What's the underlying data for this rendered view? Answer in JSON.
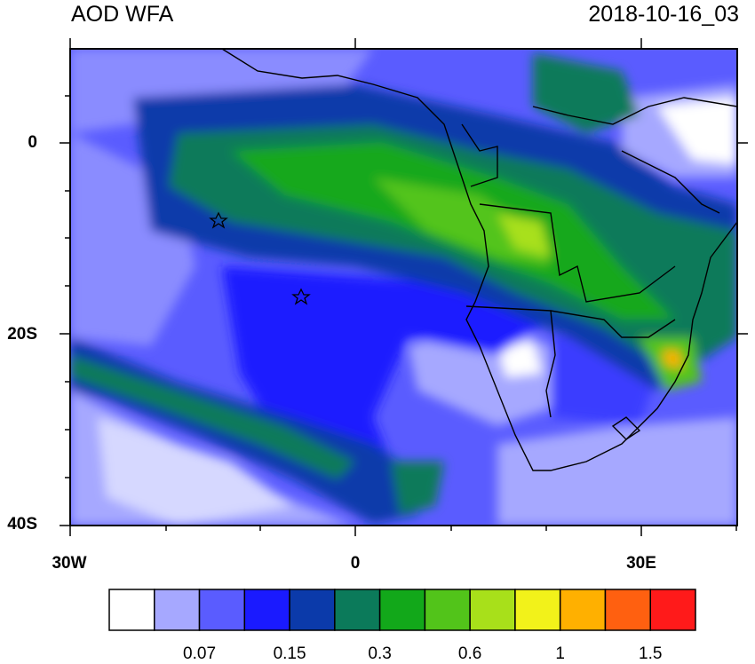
{
  "title_left": "AOD WFA",
  "title_right": "2018-10-16_03",
  "y_axis": {
    "ticks": [
      "0",
      "20S",
      "40S"
    ]
  },
  "x_axis": {
    "ticks": [
      "30W",
      "0",
      "30E"
    ]
  },
  "colorbar": {
    "labels": [
      "0.07",
      "0.15",
      "0.3",
      "0.6",
      "1",
      "1.5"
    ],
    "colors": [
      "#ffffff",
      "#a6a8ff",
      "#5a5cff",
      "#1a1aff",
      "#0b3aaa",
      "#0b7a5a",
      "#12a81a",
      "#52c41a",
      "#a8e01a",
      "#f2f21a",
      "#ffb000",
      "#ff6010",
      "#ff1a1a"
    ]
  },
  "map": {
    "region": "South Atlantic / Southern Africa",
    "markers": [
      "star",
      "star"
    ]
  }
}
